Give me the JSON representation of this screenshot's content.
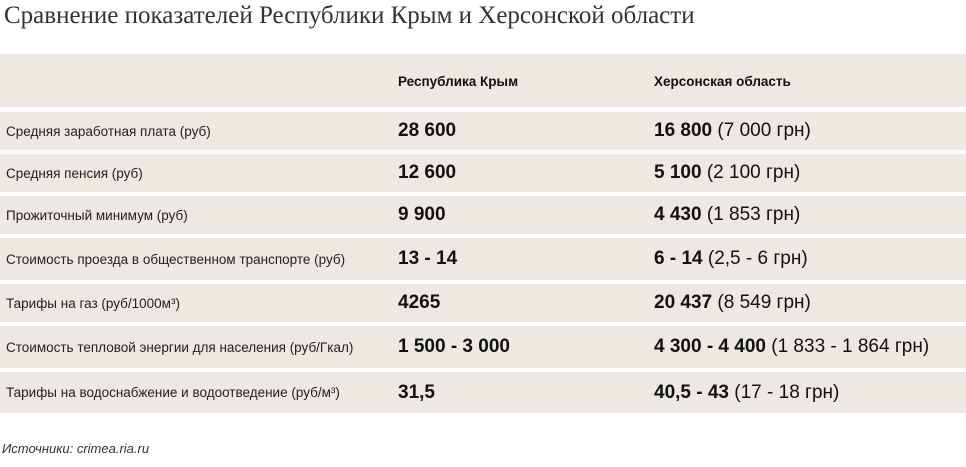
{
  "title": "Сравнение показателей Республики Крым и Херсонской области",
  "table": {
    "columns": [
      "Республика Крым",
      "Херсонская область"
    ],
    "rows": [
      {
        "label": "Средняя заработная плата (руб)",
        "crimea": "28 600",
        "kherson": "16 800",
        "kherson_extra": " (7 000 грн)"
      },
      {
        "label": "Средняя пенсия (руб)",
        "crimea": "12 600",
        "kherson": "5 100",
        "kherson_extra": " (2 100 грн)"
      },
      {
        "label": "Прожиточный минимум (руб)",
        "crimea": "9 900",
        "kherson": "4 430",
        "kherson_extra": " (1 853 грн)"
      },
      {
        "label": "Стоимость проезда в общественном транспорте (руб)",
        "crimea": "13 - 14",
        "kherson": "6 - 14",
        "kherson_extra": " (2,5 - 6 грн)"
      },
      {
        "label": "Тарифы на газ (руб/1000м³)",
        "crimea": "4265",
        "kherson": "20 437",
        "kherson_extra": "  (8 549 грн)"
      },
      {
        "label": "Стоимость тепловой энергии для населения  (руб/Гкал)",
        "crimea": "1 500 - 3 000",
        "kherson": "4 300 - 4 400",
        "kherson_extra": " (1 833 - 1 864 грн)"
      },
      {
        "label": "Тарифы на водоснабжение и водоотведение  (руб/м³)",
        "crimea": "31,5",
        "kherson": "40,5 - 43",
        "kherson_extra": " (17 - 18 грн)"
      }
    ]
  },
  "source": "Источники: crimea.ria.ru"
}
